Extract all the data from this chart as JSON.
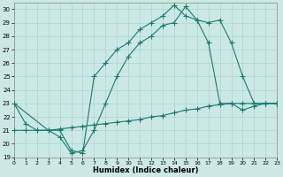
{
  "xlabel": "Humidex (Indice chaleur)",
  "bg_color": "#cce8e5",
  "grid_color": "#aad4d0",
  "line_color": "#1a7a6e",
  "xlim": [
    0,
    23
  ],
  "ylim": [
    19,
    30.5
  ],
  "xticks": [
    0,
    1,
    2,
    3,
    4,
    5,
    6,
    7,
    8,
    9,
    10,
    11,
    12,
    13,
    14,
    15,
    16,
    17,
    18,
    19,
    20,
    21,
    22,
    23
  ],
  "yticks": [
    19,
    20,
    21,
    22,
    23,
    24,
    25,
    26,
    27,
    28,
    29,
    30
  ],
  "line1": {
    "x": [
      0,
      1,
      2,
      3,
      4,
      5,
      6,
      7,
      8,
      9,
      10,
      11,
      12,
      13,
      14,
      15,
      16,
      17,
      18,
      19,
      20,
      21,
      22,
      23
    ],
    "y": [
      23,
      21.5,
      21,
      21,
      20.5,
      19.3,
      19.5,
      21,
      23,
      25,
      26.5,
      27.5,
      28,
      28.8,
      29.0,
      30.2,
      29.2,
      29.0,
      29.2,
      27.5,
      25.0,
      23.0,
      23.0,
      23.0
    ]
  },
  "line2": {
    "x": [
      0,
      3,
      4,
      5,
      6,
      7,
      8,
      9,
      10,
      11,
      12,
      13,
      14,
      15,
      16,
      17,
      18,
      19,
      20,
      21,
      22,
      23
    ],
    "y": [
      23,
      21,
      21,
      19.5,
      19.3,
      25,
      26,
      27,
      27.5,
      28.5,
      29,
      29.5,
      30.3,
      29.5,
      29.2,
      27.5,
      23,
      23,
      23,
      23,
      23,
      23
    ]
  },
  "line3": {
    "x": [
      0,
      1,
      2,
      3,
      4,
      5,
      6,
      7,
      8,
      9,
      10,
      11,
      12,
      13,
      14,
      15,
      16,
      17,
      18,
      19,
      20,
      21,
      22,
      23
    ],
    "y": [
      21,
      21,
      21,
      21,
      21.1,
      21.2,
      21.3,
      21.4,
      21.5,
      21.6,
      21.7,
      21.8,
      22.0,
      22.1,
      22.3,
      22.5,
      22.6,
      22.8,
      22.9,
      23.0,
      22.5,
      22.8,
      23.0,
      23.0
    ]
  }
}
